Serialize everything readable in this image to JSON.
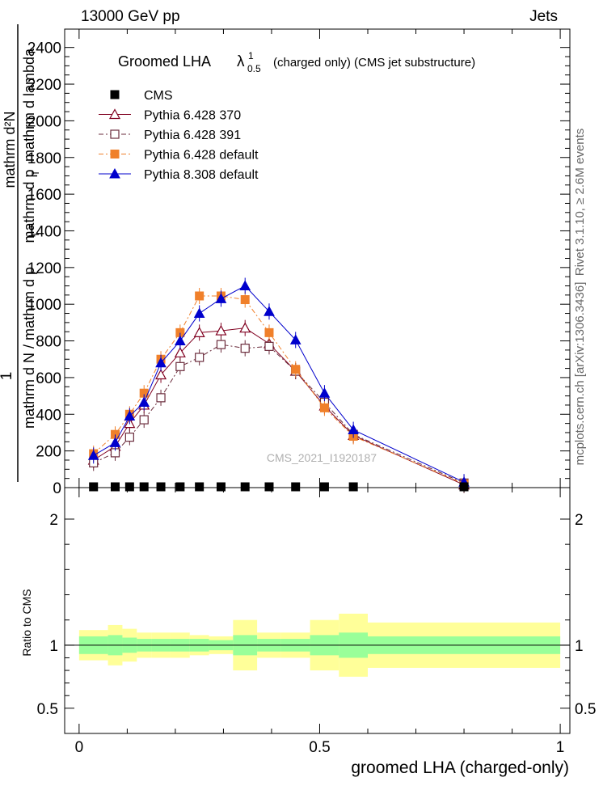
{
  "header": {
    "left": "13000 GeV pp",
    "right": "Jets"
  },
  "side_text": {
    "rivet": "Rivet 3.1.10, ≥ 2.6M events",
    "mcplots": "mcplots.cern.ch [arXiv:1306.3436]"
  },
  "watermark": "CMS_2021_I1920187",
  "title": {
    "main": "Groomed LHA",
    "lambda": "λ",
    "sup": "1",
    "sub": "0.5",
    "rest": "(charged only) (CMS jet substructure)"
  },
  "ylabel_main": {
    "numerator": "mathrm d²N",
    "denominator": "mathrm d p",
    "denominator_sub": "T",
    "denominator_rest": "mathrm d lambda",
    "prefix": "1",
    "bottom": "mathrm d N / mathrm d p",
    "bottom_sub": "T"
  },
  "ratio_ylabel": "Ratio to CMS",
  "xlabel": "groomed LHA (charged-only)",
  "chart_data": {
    "type": "line",
    "x_axis": {
      "range": [
        -0.03,
        1.02
      ],
      "ticks": [
        0,
        0.5,
        1
      ],
      "tick_labels": [
        "0",
        "0.5",
        "1"
      ]
    },
    "y_axis": {
      "range": [
        0,
        2500
      ],
      "ticks": [
        0,
        200,
        400,
        600,
        800,
        1000,
        1200,
        1400,
        1600,
        1800,
        2000,
        2200,
        2400
      ],
      "tick_labels": [
        "0",
        "200",
        "400",
        "600",
        "800",
        "1000",
        "1200",
        "1400",
        "1600",
        "1800",
        "2000",
        "2200",
        "2400"
      ]
    },
    "ratio_axis": {
      "range": [
        0.3,
        2.25
      ],
      "ticks": [
        0.5,
        1,
        2
      ],
      "tick_labels": [
        "0.5",
        "1",
        "2"
      ]
    },
    "x": [
      0.03,
      0.075,
      0.105,
      0.135,
      0.17,
      0.21,
      0.25,
      0.295,
      0.345,
      0.395,
      0.45,
      0.51,
      0.57,
      0.8
    ],
    "series": [
      {
        "name": "CMS",
        "color": "#000000",
        "marker": "square-filled",
        "dash": "",
        "values": [
          5,
          5,
          5,
          5,
          5,
          5,
          5,
          5,
          5,
          5,
          5,
          5,
          5,
          5
        ]
      },
      {
        "name": "Pythia 6.428 370",
        "color": "#800020",
        "marker": "triangle-open",
        "dash": "",
        "values": [
          150,
          225,
          350,
          450,
          615,
          735,
          845,
          855,
          870,
          785,
          635,
          445,
          285,
          15
        ]
      },
      {
        "name": "Pythia 6.428 391",
        "color": "#6b2c3c",
        "marker": "square-open",
        "dash": "6,3,2,3",
        "values": [
          135,
          190,
          275,
          370,
          490,
          660,
          710,
          780,
          760,
          770,
          635,
          465,
          290,
          25
        ]
      },
      {
        "name": "Pythia 6.428 default",
        "color": "#f0802a",
        "marker": "square-filled",
        "dash": "6,3,2,3",
        "values": [
          185,
          290,
          400,
          515,
          700,
          845,
          1045,
          1045,
          1025,
          845,
          645,
          435,
          280,
          20
        ]
      },
      {
        "name": "Pythia 8.308 default",
        "color": "#0000cc",
        "marker": "triangle-filled",
        "dash": "",
        "values": [
          175,
          245,
          390,
          465,
          680,
          800,
          950,
          1030,
          1100,
          960,
          805,
          515,
          315,
          30
        ]
      }
    ],
    "ratio_bands": {
      "edges": [
        0,
        0.06,
        0.09,
        0.12,
        0.15,
        0.19,
        0.23,
        0.27,
        0.32,
        0.37,
        0.42,
        0.48,
        0.54,
        0.6,
        1.0
      ],
      "inner": [
        0.07,
        0.08,
        0.06,
        0.05,
        0.05,
        0.05,
        0.05,
        0.04,
        0.08,
        0.05,
        0.05,
        0.08,
        0.1,
        0.07
      ],
      "outer": [
        0.12,
        0.16,
        0.13,
        0.1,
        0.1,
        0.1,
        0.08,
        0.07,
        0.2,
        0.1,
        0.1,
        0.2,
        0.25,
        0.18
      ],
      "inner_color": "#99ff99",
      "outer_color": "#ffff99"
    }
  }
}
